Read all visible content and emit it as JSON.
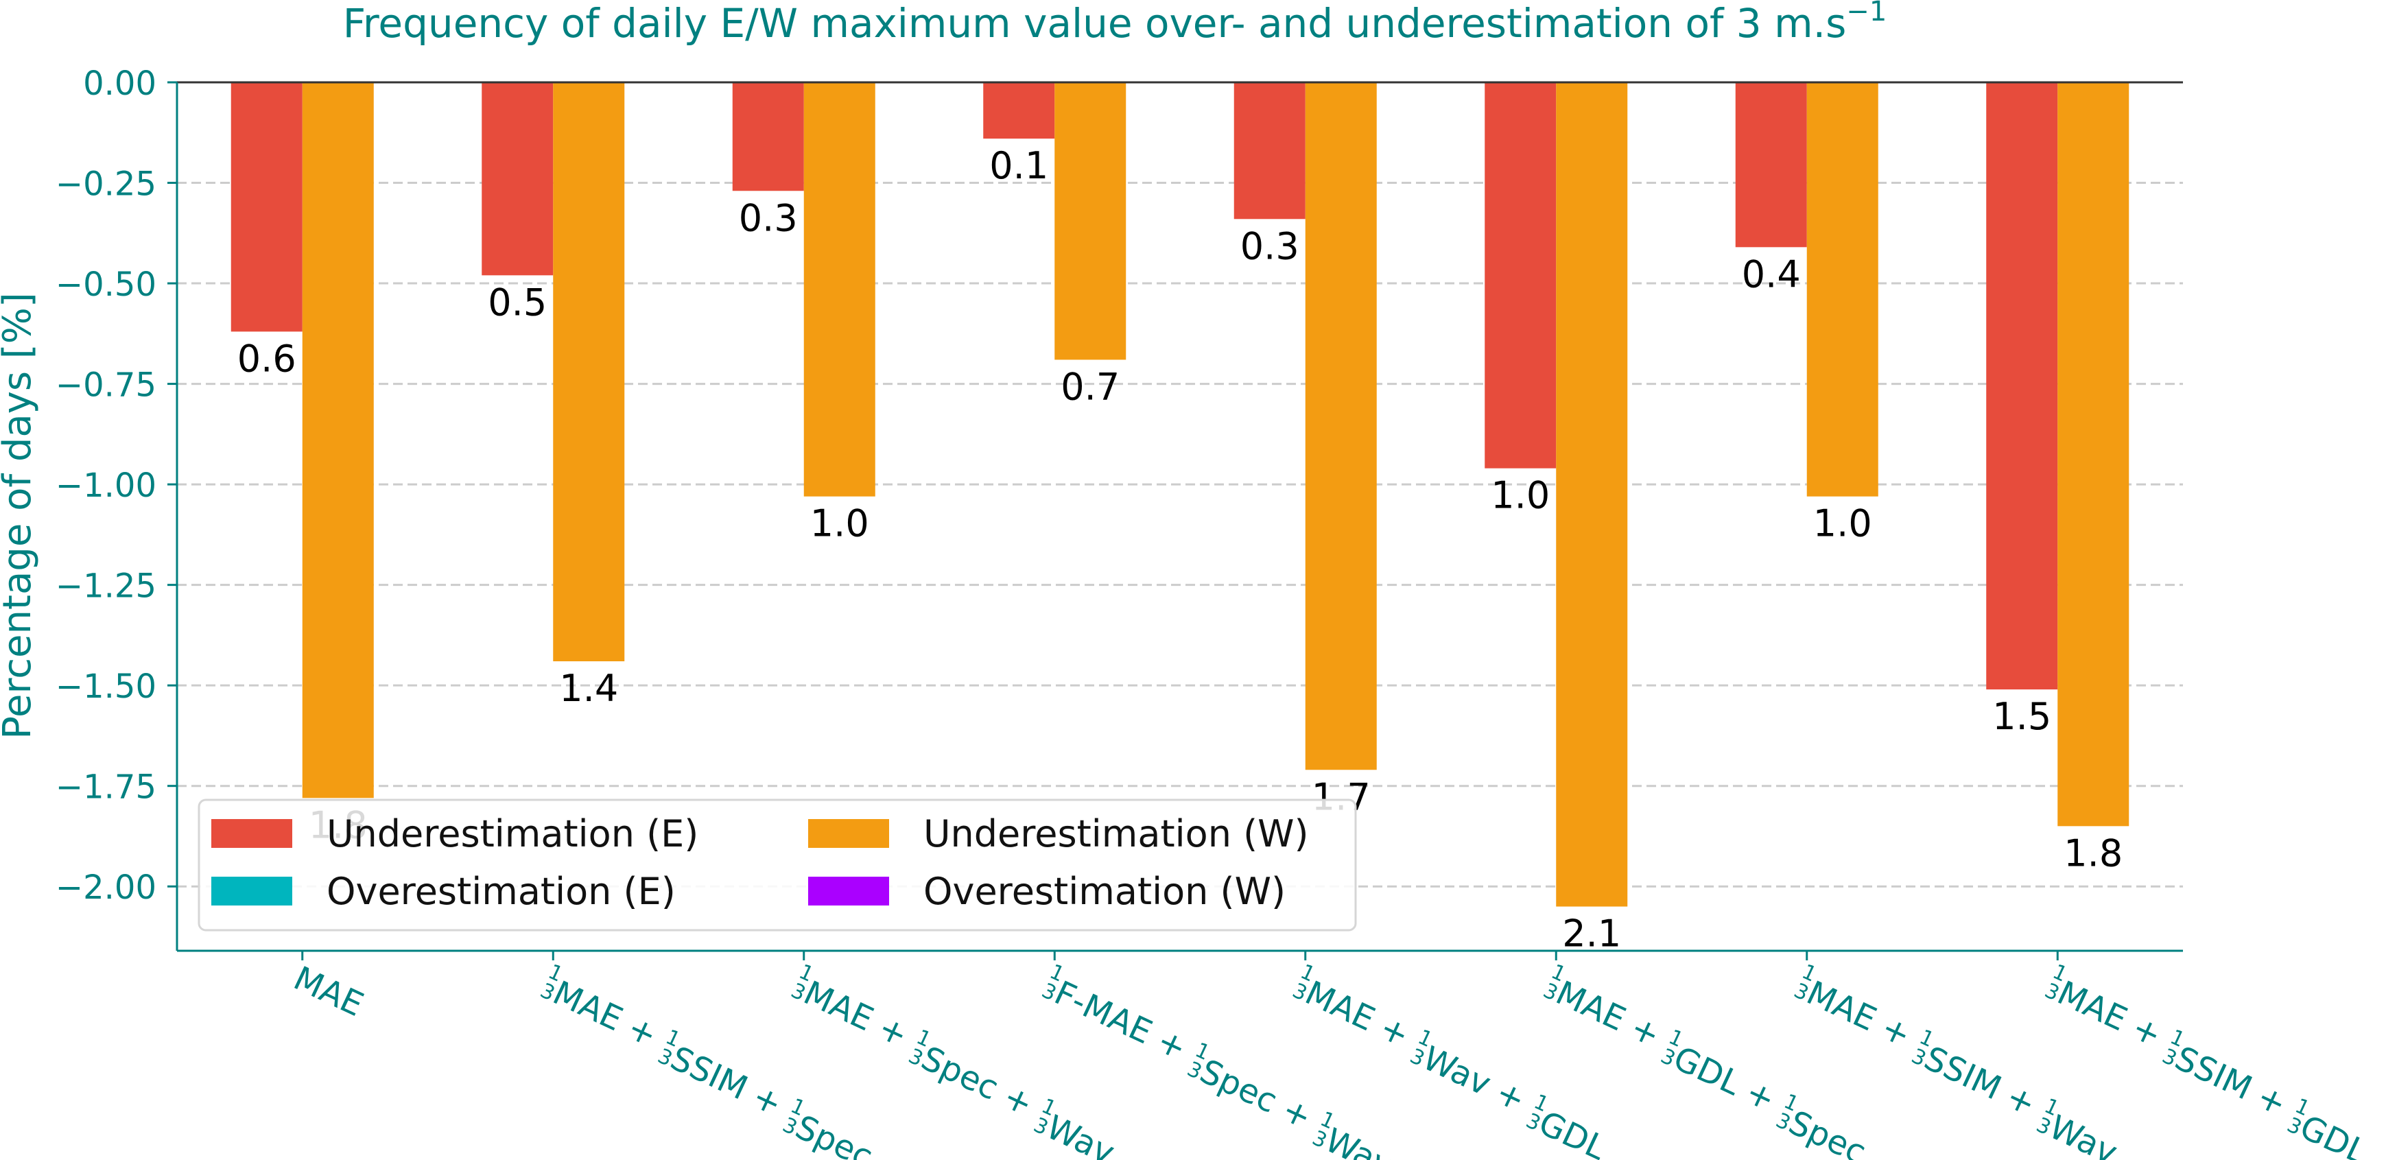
{
  "chart_data": {
    "type": "bar",
    "title": "Frequency of daily E/W maximum value over- and underestimation of 3 m.s",
    "title_superscript": "−1",
    "ylabel": "Percentage of days [%]",
    "xlabel": "",
    "ylim": [
      -2.16,
      0.0
    ],
    "yticks": [
      0.0,
      -0.25,
      -0.5,
      -0.75,
      -1.0,
      -1.25,
      -1.5,
      -1.75,
      -2.0
    ],
    "ytick_labels": [
      "0.00",
      "−0.25",
      "−0.50",
      "−0.75",
      "−1.00",
      "−1.25",
      "−1.50",
      "−1.75",
      "−2.00"
    ],
    "grid": "horizontal dashed",
    "legend_position": "lower-left",
    "categories": [
      [
        {
          "t": "MAE"
        }
      ],
      [
        {
          "f": true
        },
        {
          "t": "MAE + "
        },
        {
          "f": true
        },
        {
          "t": "SSIM + "
        },
        {
          "f": true
        },
        {
          "t": "Spec"
        }
      ],
      [
        {
          "f": true
        },
        {
          "t": "MAE + "
        },
        {
          "f": true
        },
        {
          "t": "Spec + "
        },
        {
          "f": true
        },
        {
          "t": "Wav"
        }
      ],
      [
        {
          "f": true
        },
        {
          "t": "F-MAE + "
        },
        {
          "f": true
        },
        {
          "t": "Spec + "
        },
        {
          "f": true
        },
        {
          "t": "Wav"
        }
      ],
      [
        {
          "f": true
        },
        {
          "t": "MAE + "
        },
        {
          "f": true
        },
        {
          "t": "Wav + "
        },
        {
          "f": true
        },
        {
          "t": "GDL"
        }
      ],
      [
        {
          "f": true
        },
        {
          "t": "MAE + "
        },
        {
          "f": true
        },
        {
          "t": "GDL + "
        },
        {
          "f": true
        },
        {
          "t": "Spec"
        }
      ],
      [
        {
          "f": true
        },
        {
          "t": "MAE + "
        },
        {
          "f": true
        },
        {
          "t": "SSIM + "
        },
        {
          "f": true
        },
        {
          "t": "Wav"
        }
      ],
      [
        {
          "f": true
        },
        {
          "t": "MAE + "
        },
        {
          "f": true
        },
        {
          "t": "SSIM + "
        },
        {
          "f": true
        },
        {
          "t": "GDL"
        }
      ]
    ],
    "fraction": {
      "num": "1",
      "den": "3"
    },
    "series": [
      {
        "name": "Underestimation (E)",
        "color": "#e74c3c",
        "values": [
          -0.62,
          -0.48,
          -0.27,
          -0.14,
          -0.34,
          -0.96,
          -0.41,
          -1.51
        ],
        "labels": [
          "0.6",
          "0.5",
          "0.3",
          "0.1",
          "0.3",
          "1.0",
          "0.4",
          "1.5"
        ]
      },
      {
        "name": "Underestimation (W)",
        "color": "#f39c12",
        "values": [
          -1.78,
          -1.44,
          -1.03,
          -0.69,
          -1.71,
          -2.05,
          -1.03,
          -1.85
        ],
        "labels": [
          "1.8",
          "1.4",
          "1.0",
          "0.7",
          "1.7",
          "2.1",
          "1.0",
          "1.8"
        ]
      },
      {
        "name": "Overestimation (E)",
        "color": "#00b5be",
        "values": [
          0,
          0,
          0,
          0,
          0,
          0,
          0,
          0
        ],
        "labels": []
      },
      {
        "name": "Overestimation (W)",
        "color": "#aa00ff",
        "values": [
          0,
          0,
          0,
          0,
          0,
          0,
          0,
          0
        ],
        "labels": []
      }
    ],
    "legend_order": [
      0,
      1,
      2,
      3
    ],
    "colors": {
      "axis": "#008080",
      "grid": "#cccccc",
      "text": "#008080"
    }
  }
}
